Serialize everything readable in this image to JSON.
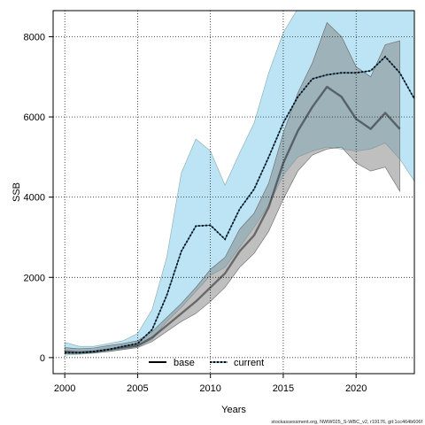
{
  "chart_data": {
    "type": "line",
    "title": "",
    "xlabel": "Years",
    "ylabel": "SSB",
    "xlim": [
      1999.2,
      2024.0
    ],
    "ylim": [
      -400,
      8650
    ],
    "xticks": [
      2000,
      2005,
      2010,
      2015,
      2020
    ],
    "yticks": [
      0,
      2000,
      4000,
      6000,
      8000
    ],
    "grid": true,
    "legend_position": "bottom-center",
    "series": [
      {
        "name": "base",
        "color": "#000000",
        "band_color": "#808080",
        "x": [
          2000,
          2001,
          2002,
          2003,
          2004,
          2005,
          2006,
          2007,
          2008,
          2009,
          2010,
          2011,
          2012,
          2013,
          2014,
          2015,
          2016,
          2017,
          2018,
          2019,
          2020,
          2021,
          2022,
          2023
        ],
        "values": [
          150,
          130,
          150,
          200,
          250,
          300,
          500,
          800,
          1100,
          1400,
          1750,
          2100,
          2650,
          3050,
          3750,
          4850,
          5650,
          6250,
          6750,
          6500,
          5950,
          5700,
          6100,
          5700
        ],
        "lower": [
          100,
          100,
          120,
          150,
          200,
          250,
          400,
          650,
          900,
          1100,
          1400,
          1750,
          2250,
          2600,
          3150,
          3950,
          4650,
          5050,
          5200,
          5250,
          4850,
          4650,
          4750,
          4150
        ],
        "upper": [
          250,
          220,
          240,
          300,
          350,
          420,
          650,
          1000,
          1350,
          1750,
          2200,
          2500,
          3200,
          3600,
          4350,
          5600,
          6600,
          7350,
          8350,
          8000,
          7250,
          7000,
          7800,
          7900
        ]
      },
      {
        "name": "current",
        "color": "#1a5a80",
        "band_color": "#87ceeb",
        "x": [
          2000,
          2001,
          2002,
          2003,
          2004,
          2005,
          2006,
          2007,
          2008,
          2009,
          2010,
          2011,
          2012,
          2013,
          2014,
          2015,
          2016,
          2017,
          2018,
          2019,
          2020,
          2021,
          2022,
          2023,
          2024
        ],
        "values": [
          120,
          120,
          150,
          200,
          280,
          350,
          700,
          1550,
          2650,
          3280,
          3300,
          2950,
          3700,
          4200,
          5000,
          5850,
          6500,
          6950,
          7050,
          7100,
          7100,
          7150,
          7500,
          7100,
          6450
        ],
        "lower": [
          60,
          80,
          110,
          150,
          200,
          280,
          450,
          900,
          1250,
          1650,
          2050,
          2250,
          2750,
          3250,
          3800,
          4550,
          5000,
          5150,
          5250,
          5200,
          5150,
          5200,
          5350,
          4950,
          4400
        ],
        "upper": [
          380,
          280,
          280,
          350,
          420,
          600,
          1200,
          2500,
          4600,
          5450,
          5150,
          4300,
          5100,
          5850,
          7100,
          8100,
          8700,
          8700,
          8700,
          8700,
          8700,
          8700,
          8700,
          8700,
          8700
        ]
      }
    ],
    "footer": "stockassessment.org, NWW025_S-WBC_v2, r19176, git:1cc464b606f"
  }
}
